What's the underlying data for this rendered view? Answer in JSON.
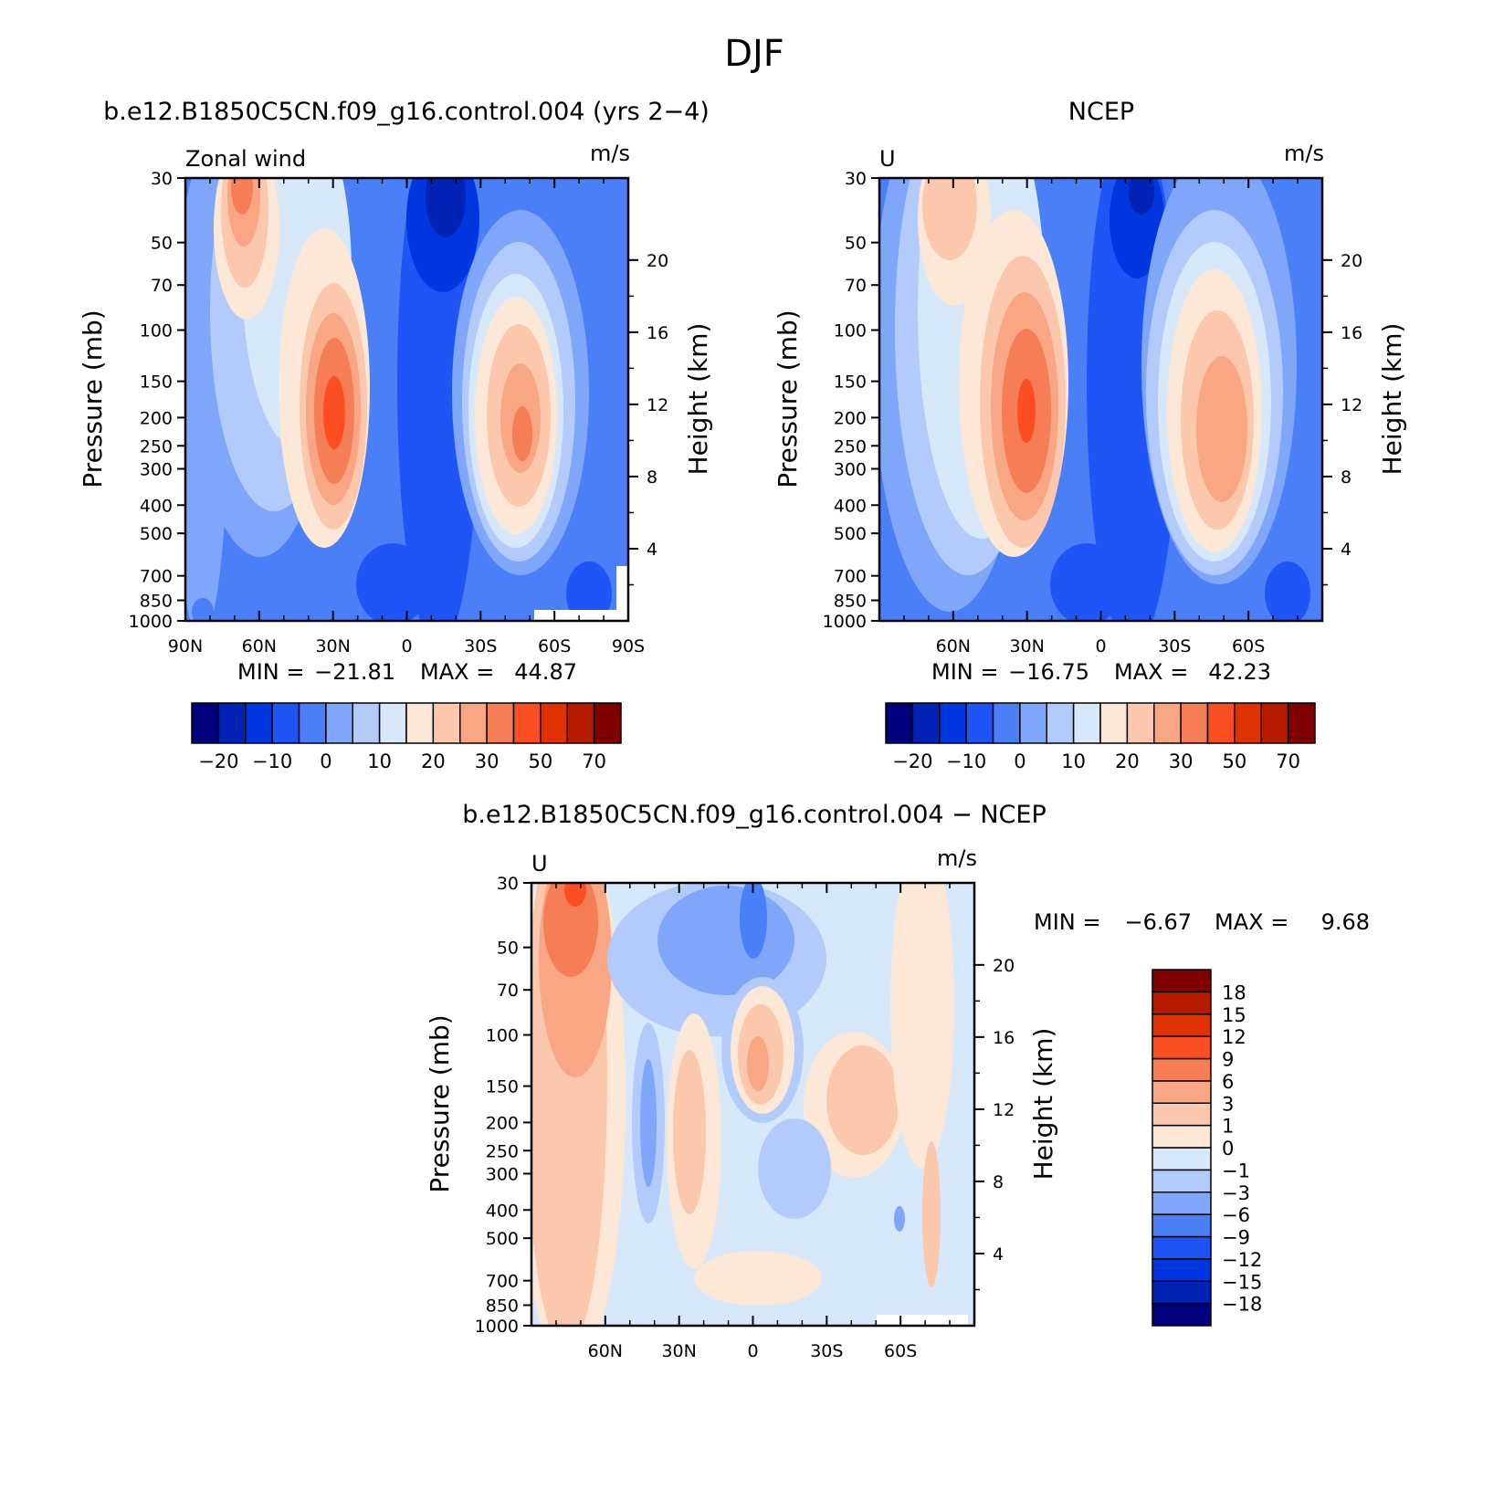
{
  "figure": {
    "title": "DJF"
  },
  "chart_data": [
    {
      "type": "heatmap",
      "title": "b.e12.B1850C5CN.f09_g16.control.004 (yrs 2−4)",
      "left_label": "Zonal wind",
      "units": "m/s",
      "ylabel": "Pressure (mb)",
      "y2label": "Height (km)",
      "xticks": [
        "90N",
        "60N",
        "30N",
        "0",
        "30S",
        "60S",
        "90S"
      ],
      "yticks": [
        "30",
        "50",
        "70",
        "100",
        "150",
        "200",
        "250",
        "300",
        "400",
        "500",
        "700",
        "850",
        "1000"
      ],
      "y2ticks": [
        "20",
        "16",
        "12",
        "8",
        "4"
      ],
      "ylim": [
        1000,
        30
      ],
      "xlim": [
        90,
        -90
      ],
      "y_scale": "log",
      "min_label": "MIN =",
      "min_value": "−21.81",
      "max_label": "MAX =",
      "max_value": "44.87",
      "jets": [
        {
          "lat": 30,
          "pressure": 200,
          "max": 44.87
        },
        {
          "lat": -47,
          "pressure": 200,
          "max": 36
        },
        {
          "lat": 68,
          "pressure": 30,
          "max": 30
        }
      ],
      "minimum": {
        "lat": -15,
        "pressure": 30,
        "value": -21.81
      },
      "colorbar_ticks": [
        "−20",
        "−10",
        "0",
        "10",
        "20",
        "30",
        "50",
        "70"
      ]
    },
    {
      "type": "heatmap",
      "title": "NCEP",
      "left_label": "U",
      "units": "m/s",
      "ylabel": "Pressure (mb)",
      "y2label": "Height (km)",
      "xticks": [
        "60N",
        "30N",
        "0",
        "30S",
        "60S"
      ],
      "yticks": [
        "30",
        "50",
        "70",
        "100",
        "150",
        "200",
        "250",
        "300",
        "400",
        "500",
        "700",
        "850",
        "1000"
      ],
      "y2ticks": [
        "20",
        "16",
        "12",
        "8",
        "4"
      ],
      "ylim": [
        1000,
        30
      ],
      "xlim": [
        90,
        -90
      ],
      "y_scale": "log",
      "min_label": "MIN =",
      "min_value": "−16.75",
      "max_label": "MAX =",
      "max_value": "42.23",
      "jets": [
        {
          "lat": 30,
          "pressure": 200,
          "max": 42.23
        },
        {
          "lat": -45,
          "pressure": 250,
          "max": 30
        },
        {
          "lat": 62,
          "pressure": 30,
          "max": 18
        }
      ],
      "minimum": {
        "lat": -15,
        "pressure": 30,
        "value": -16.75
      },
      "colorbar_ticks": [
        "−20",
        "−10",
        "0",
        "10",
        "20",
        "30",
        "50",
        "70"
      ]
    },
    {
      "type": "heatmap",
      "title": "b.e12.B1850C5CN.f09_g16.control.004 − NCEP",
      "left_label": "U",
      "units": "m/s",
      "ylabel": "Pressure (mb)",
      "y2label": "Height (km)",
      "xticks": [
        "60N",
        "30N",
        "0",
        "30S",
        "60S"
      ],
      "yticks": [
        "30",
        "50",
        "70",
        "100",
        "150",
        "200",
        "250",
        "300",
        "400",
        "500",
        "700",
        "850",
        "1000"
      ],
      "y2ticks": [
        "20",
        "16",
        "12",
        "8",
        "4"
      ],
      "ylim": [
        1000,
        30
      ],
      "xlim": [
        90,
        -90
      ],
      "y_scale": "log",
      "min_label": "MIN =",
      "min_value": "−6.67",
      "max_label": "MAX =",
      "max_value": "9.68",
      "features": [
        {
          "lat": 72,
          "pressure": 40,
          "value": 9
        },
        {
          "lat": 0,
          "pressure": 130,
          "value": 5
        },
        {
          "lat": -35,
          "pressure": 200,
          "value": 2
        },
        {
          "lat": 27,
          "pressure": 300,
          "value": 2
        },
        {
          "lat": 0,
          "pressure": 40,
          "value": -6
        }
      ],
      "colorbar_ticks": [
        "18",
        "15",
        "12",
        "9",
        "6",
        "3",
        "1",
        "0",
        "−1",
        "−3",
        "−6",
        "−9",
        "−12",
        "−15",
        "−18"
      ]
    }
  ],
  "colors": {
    "full_field": [
      "#00007f",
      "#0022b5",
      "#0036e0",
      "#1f55f7",
      "#4a7ff7",
      "#7fa6f9",
      "#b3cbfb",
      "#d8e8fb",
      "#fde8d8",
      "#fbc8ae",
      "#f8a684",
      "#f57e56",
      "#fb4e22",
      "#e03200",
      "#b61b00",
      "#800000"
    ],
    "difference": [
      "#00007f",
      "#0022b5",
      "#0036e0",
      "#1f55f7",
      "#4a7ff7",
      "#7fa6f9",
      "#b3cbfb",
      "#d8e8fb",
      "#fde8d8",
      "#fbc8ae",
      "#f8a684",
      "#f57e56",
      "#fb4e22",
      "#e03200",
      "#b61b00",
      "#800000"
    ]
  }
}
